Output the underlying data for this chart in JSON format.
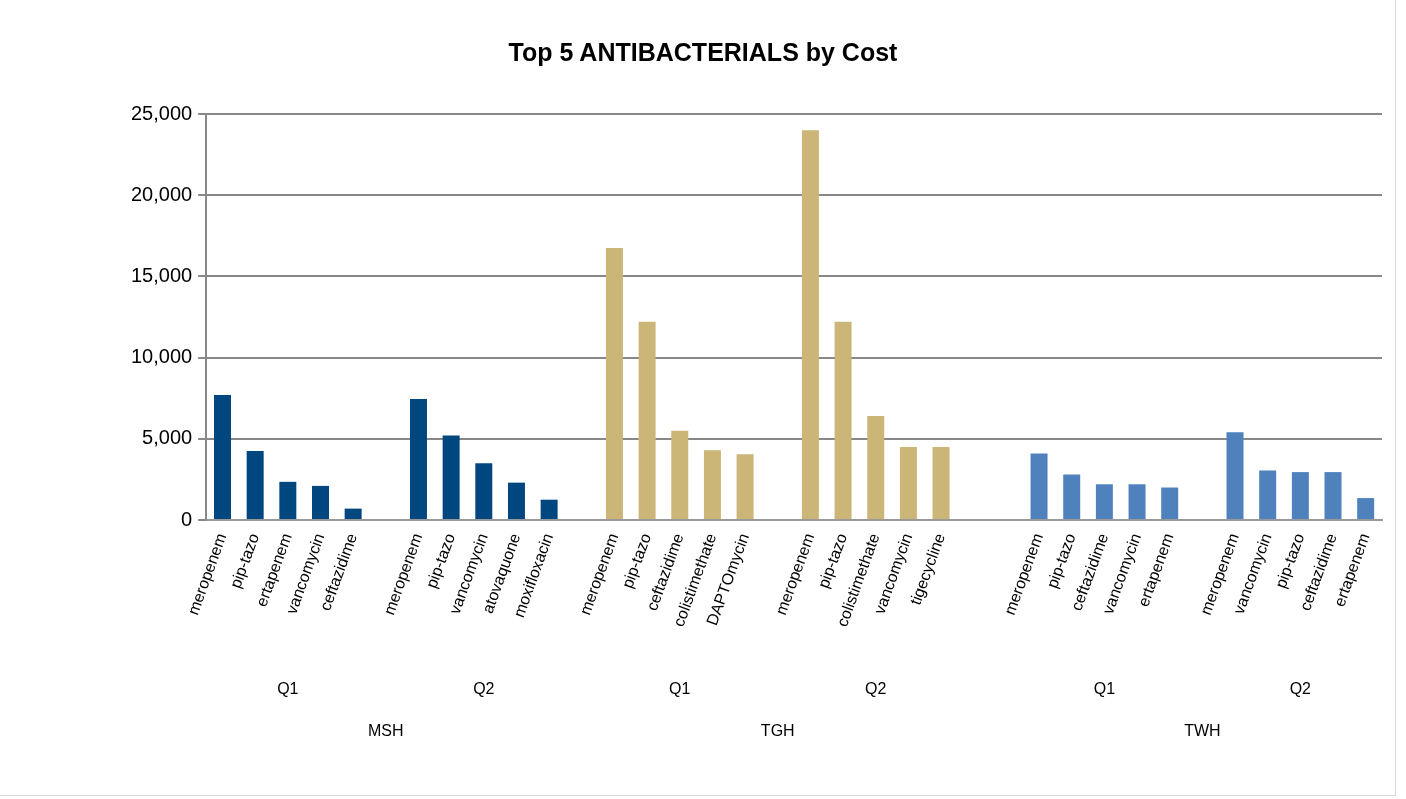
{
  "chart_data": {
    "type": "bar",
    "title": "Top 5 ANTIBACTERIALS by Cost",
    "categories": [
      "meropenem",
      "pip-tazo",
      "ertapenem",
      "vancomycin",
      "ceftazidime",
      null,
      "meropenem",
      "pip-tazo",
      "vancomycin",
      "atovaquone",
      "moxifloxacin",
      null,
      "meropenem",
      "pip-tazo",
      "ceftazidime",
      "colistimethate",
      "DAPTOmycin",
      null,
      "meropenem",
      "pip-tazo",
      "colistimethate",
      "vancomycin",
      "tigecycline",
      null,
      null,
      "meropenem",
      "pip-tazo",
      "ceftazidime",
      "vancomycin",
      "ertapenem",
      null,
      "meropenem",
      "vancomycin",
      "pip-tazo",
      "ceftazidime",
      "ertapenem"
    ],
    "values": [
      7700,
      4250,
      2350,
      2100,
      700,
      null,
      7450,
      5200,
      3500,
      2300,
      1250,
      null,
      16750,
      12200,
      5500,
      4300,
      4050,
      null,
      24000,
      12200,
      6400,
      4500,
      4500,
      null,
      null,
      4100,
      2800,
      2200,
      2200,
      2000,
      null,
      5400,
      3050,
      2950,
      2950,
      1350
    ],
    "colors": [
      "#00467f",
      "#00467f",
      "#00467f",
      "#00467f",
      "#00467f",
      null,
      "#00467f",
      "#00467f",
      "#00467f",
      "#00467f",
      "#00467f",
      null,
      "#cbb677",
      "#cbb677",
      "#cbb677",
      "#cbb677",
      "#cbb677",
      null,
      "#cbb677",
      "#cbb677",
      "#cbb677",
      "#cbb677",
      "#cbb677",
      null,
      null,
      "#4f81bd",
      "#4f81bd",
      "#4f81bd",
      "#4f81bd",
      "#4f81bd",
      null,
      "#4f81bd",
      "#4f81bd",
      "#4f81bd",
      "#4f81bd",
      "#4f81bd"
    ],
    "ylim": [
      0,
      25000
    ],
    "yticks": [
      {
        "value": 0,
        "label": "0"
      },
      {
        "value": 5000,
        "label": "5,000"
      },
      {
        "value": 10000,
        "label": "10,000"
      },
      {
        "value": 15000,
        "label": "15,000"
      },
      {
        "value": 20000,
        "label": "20,000"
      },
      {
        "value": 25000,
        "label": "25,000"
      }
    ],
    "grid": "y",
    "legend": false,
    "annotations": [
      "Q1",
      "Q2",
      "Q1",
      "Q2",
      "Q1",
      "Q2",
      "MSH",
      "TGH",
      "TWH"
    ]
  }
}
